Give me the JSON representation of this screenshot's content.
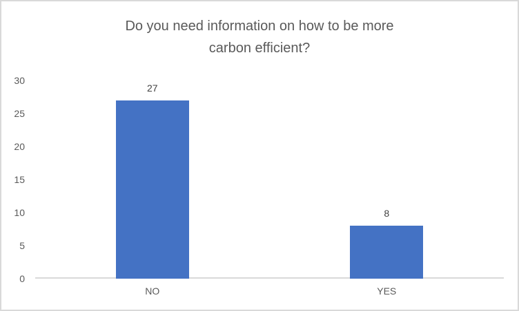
{
  "chart_data": {
    "type": "bar",
    "title": "Do you need information on how to be more carbon efficient?",
    "title_lines": [
      "Do you need information on how to be more",
      "carbon efficient?"
    ],
    "categories": [
      "NO",
      "YES"
    ],
    "values": [
      27,
      8
    ],
    "data_labels": [
      "27",
      "8"
    ],
    "xlabel": "",
    "ylabel": "",
    "ylim": [
      0,
      30
    ],
    "yticks": [
      0,
      5,
      10,
      15,
      20,
      25,
      30
    ],
    "grid": false,
    "legend": false,
    "colors": {
      "bar": "#4472C4",
      "axis_line": "#D9D9D9",
      "frame_border": "#D9D9D9",
      "title_text": "#595959",
      "tick_text": "#595959",
      "data_label_text": "#404040",
      "background": "#FFFFFF"
    }
  }
}
